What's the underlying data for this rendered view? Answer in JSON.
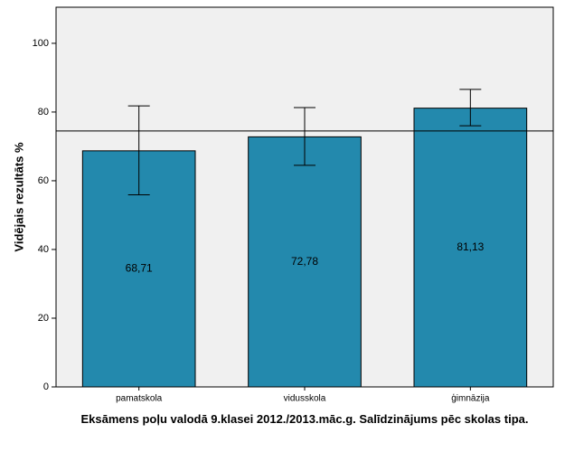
{
  "chart_data": {
    "type": "bar",
    "x_label": "Eksāmens poļu valodā 9.klasei 2012./2013.māc.g. Salīdzinājums pēc skolas tipa.",
    "y_label": "Vidējais rezultāts %",
    "categories": [
      "pamatskola",
      "vidusskola",
      "ģimnāzija"
    ],
    "values": [
      68.71,
      72.78,
      81.13
    ],
    "value_labels": [
      "68,71",
      "72,78",
      "81,13"
    ],
    "error_lower": [
      55.9,
      64.5,
      76.0
    ],
    "error_upper": [
      81.8,
      81.3,
      86.6
    ],
    "reference_line": 74.5,
    "color": "#2389ad",
    "ylim": [
      0,
      110.5
    ],
    "yticks": [
      0,
      20,
      40,
      60,
      80,
      100
    ]
  }
}
